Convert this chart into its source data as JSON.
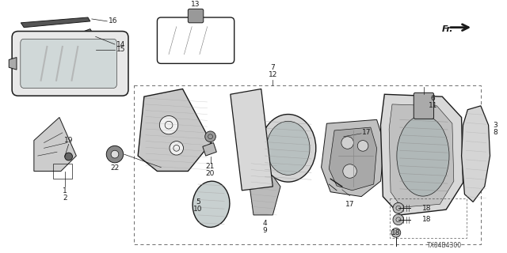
{
  "bg_color": "#ffffff",
  "line_color": "#1a1a1a",
  "fig_width": 6.4,
  "fig_height": 3.2,
  "dpi": 100,
  "part_number": "TX84B4300"
}
